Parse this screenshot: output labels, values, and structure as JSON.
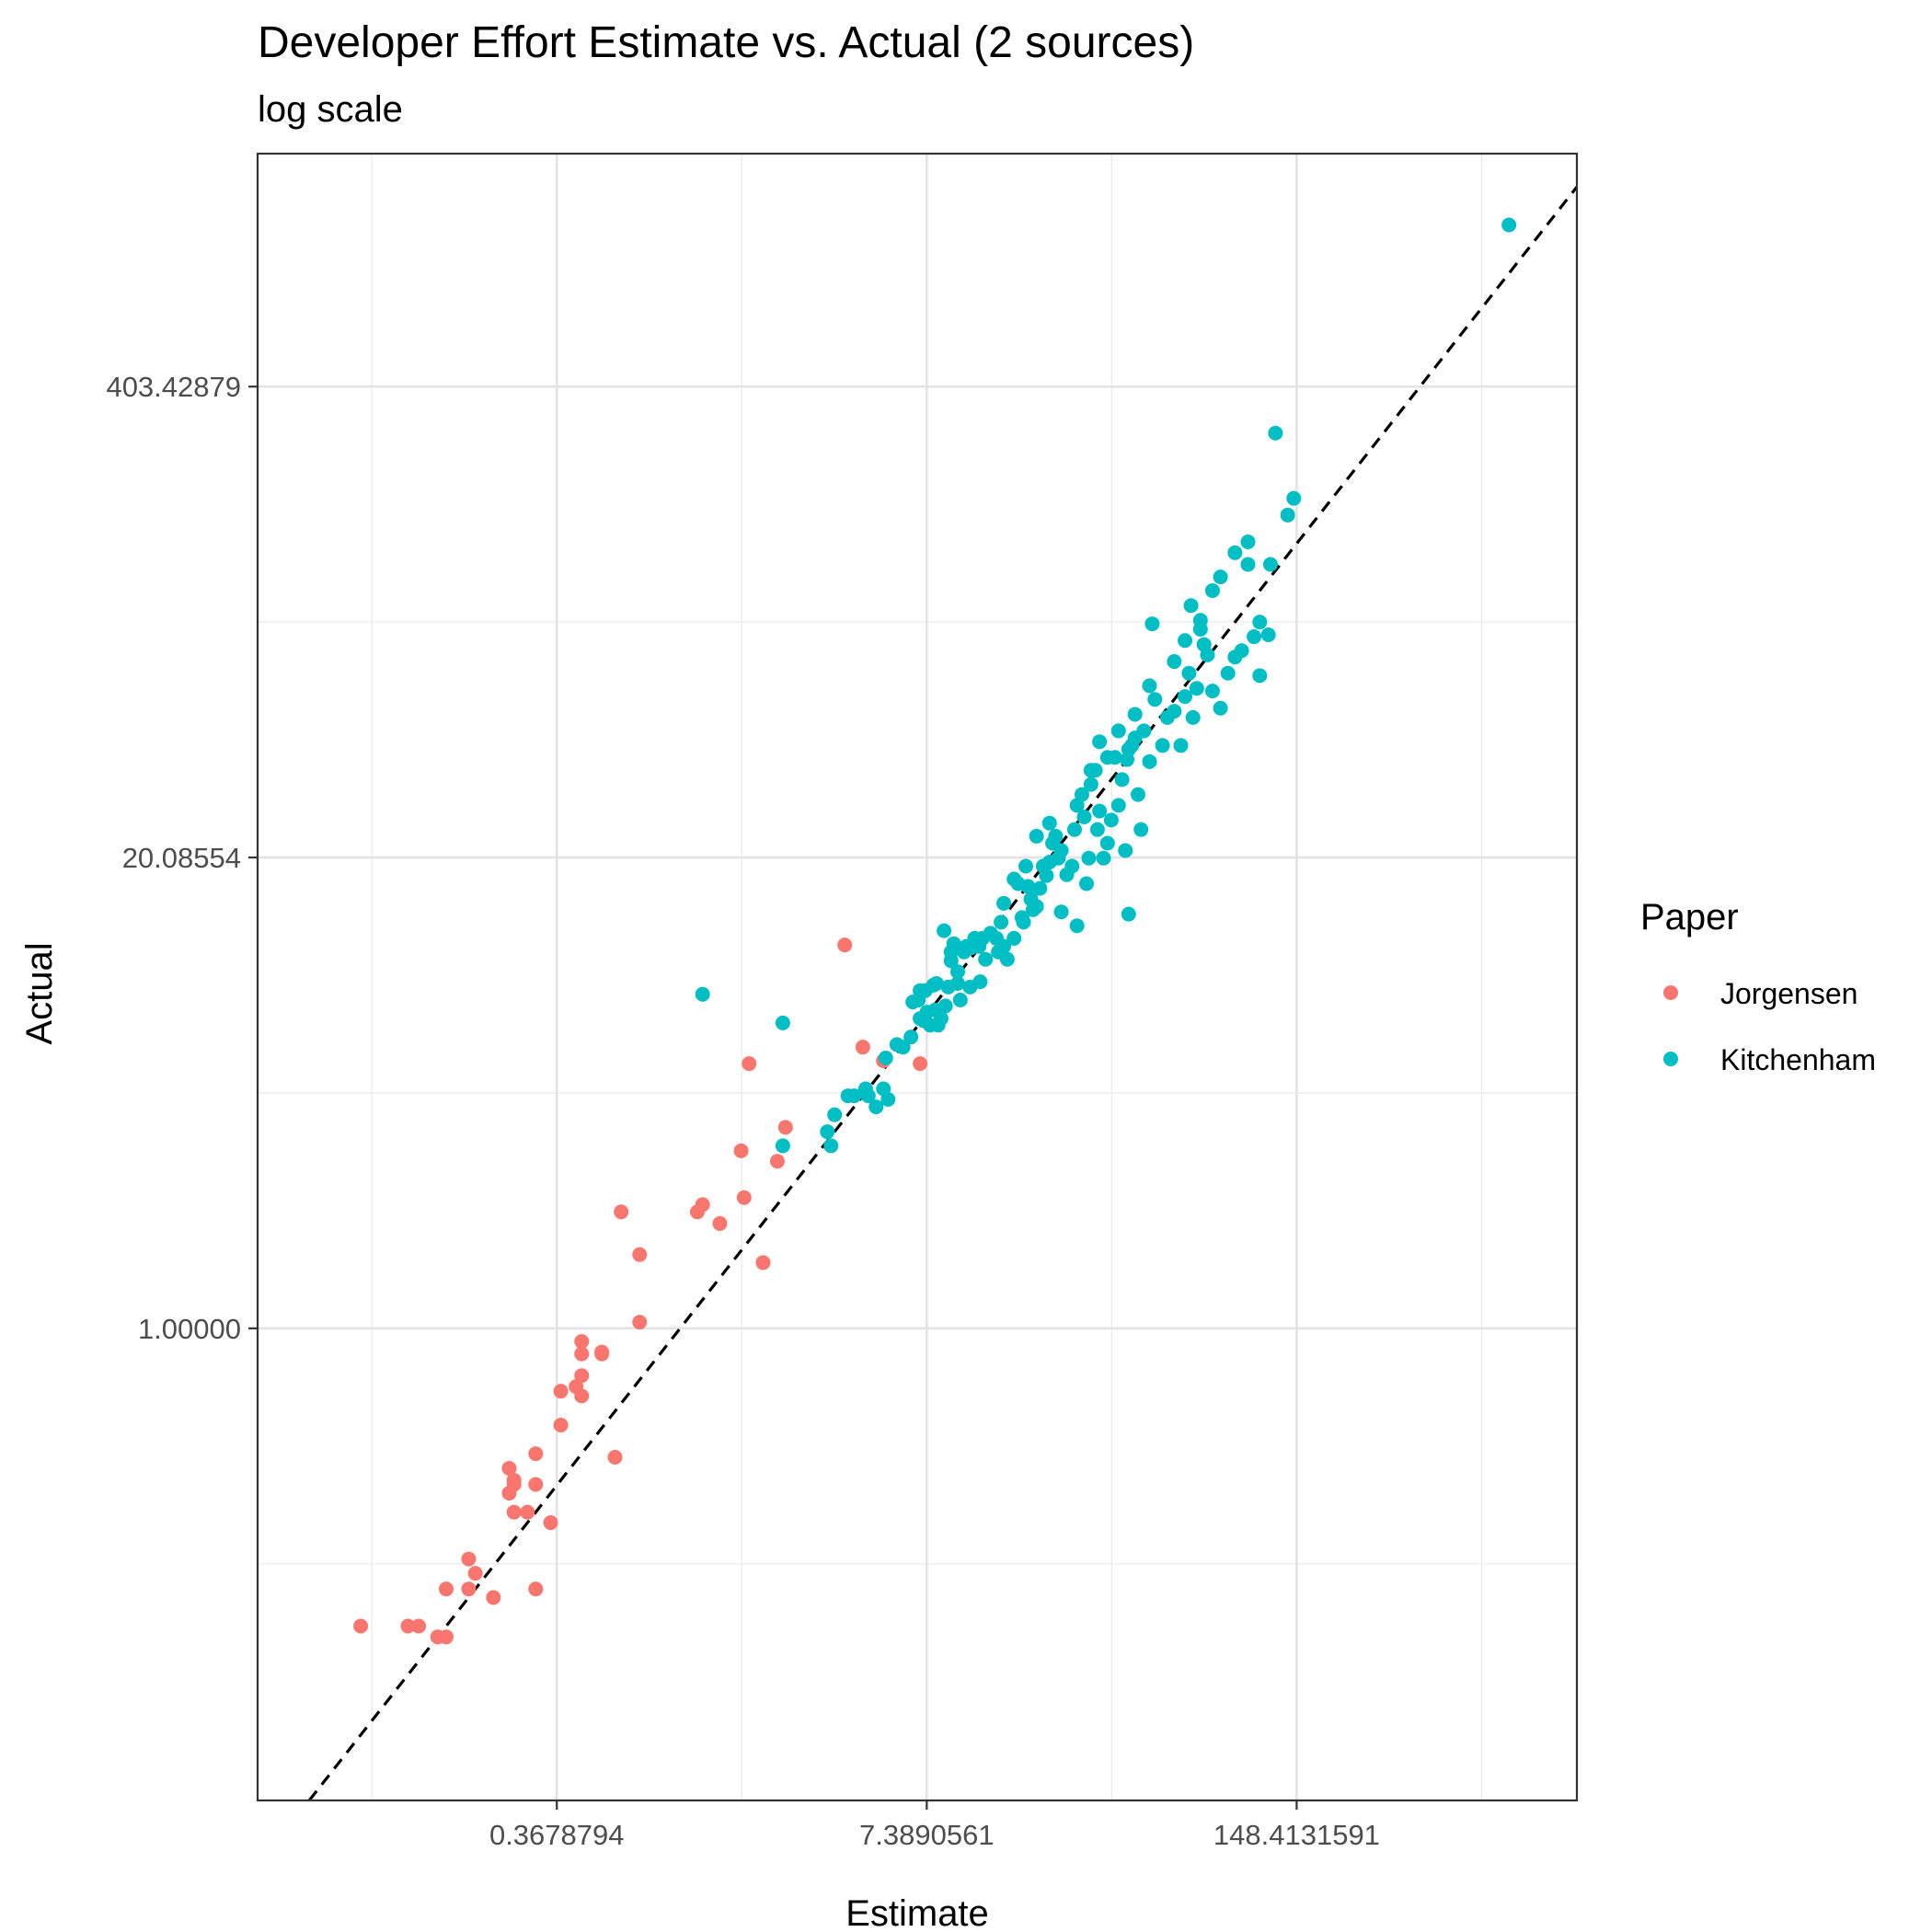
{
  "chart_data": {
    "type": "scatter",
    "title": "Developer Effort Estimate vs. Actual (2 sources)",
    "subtitle": "log scale",
    "xlabel": "Estimate",
    "ylabel": "Actual",
    "x_scale": "log",
    "y_scale": "log",
    "x_ticks": [
      {
        "value": 0.3678794,
        "label": "0.3678794"
      },
      {
        "value": 7.3890561,
        "label": "7.3890561"
      },
      {
        "value": 148.4131591,
        "label": "148.4131591"
      }
    ],
    "y_ticks": [
      {
        "value": 1.0,
        "label": "1.00000"
      },
      {
        "value": 20.08554,
        "label": "20.08554"
      },
      {
        "value": 403.42879,
        "label": "403.42879"
      }
    ],
    "xlim": [
      0.0325,
      1440
    ],
    "ylim": [
      0.0494,
      1780
    ],
    "grid": true,
    "legend": {
      "title": "Paper",
      "position": "right"
    },
    "reference_line": {
      "slope": 1,
      "intercept": 0,
      "style": "dashed",
      "color": "#000000"
    },
    "series": [
      {
        "name": "Jorgensen",
        "color": "#F8766D",
        "points": [
          [
            0.075,
            0.15
          ],
          [
            0.11,
            0.15
          ],
          [
            0.12,
            0.15
          ],
          [
            0.14,
            0.14
          ],
          [
            0.15,
            0.14
          ],
          [
            0.15,
            0.19
          ],
          [
            0.18,
            0.23
          ],
          [
            0.18,
            0.19
          ],
          [
            0.19,
            0.21
          ],
          [
            0.22,
            0.18
          ],
          [
            0.25,
            0.35
          ],
          [
            0.25,
            0.41
          ],
          [
            0.26,
            0.31
          ],
          [
            0.26,
            0.37
          ],
          [
            0.26,
            0.38
          ],
          [
            0.29,
            0.31
          ],
          [
            0.31,
            0.45
          ],
          [
            0.31,
            0.37
          ],
          [
            0.31,
            0.19
          ],
          [
            0.35,
            0.29
          ],
          [
            0.38,
            0.54
          ],
          [
            0.38,
            0.67
          ],
          [
            0.43,
            0.69
          ],
          [
            0.45,
            0.65
          ],
          [
            0.45,
            0.74
          ],
          [
            0.45,
            0.85
          ],
          [
            0.45,
            0.92
          ],
          [
            0.53,
            0.85
          ],
          [
            0.53,
            0.86
          ],
          [
            0.59,
            0.44
          ],
          [
            0.62,
            2.1
          ],
          [
            0.72,
            1.6
          ],
          [
            0.72,
            1.04
          ],
          [
            1.15,
            2.1
          ],
          [
            1.2,
            2.2
          ],
          [
            1.38,
            1.95
          ],
          [
            1.64,
            3.1
          ],
          [
            1.68,
            2.3
          ],
          [
            1.75,
            5.4
          ],
          [
            1.96,
            1.52
          ],
          [
            2.2,
            2.9
          ],
          [
            2.35,
            3.6
          ],
          [
            3.8,
            11.5
          ],
          [
            4.4,
            6.0
          ],
          [
            7.0,
            5.4
          ],
          [
            5.2,
            5.5
          ]
        ]
      },
      {
        "name": "Kitchenham",
        "color": "#00BFC4",
        "points": [
          [
            1.2,
            8.4
          ],
          [
            2.3,
            7.0
          ],
          [
            2.3,
            3.2
          ],
          [
            3.4,
            3.2
          ],
          [
            3.5,
            3.9
          ],
          [
            3.9,
            4.4
          ],
          [
            4.1,
            4.4
          ],
          [
            4.5,
            4.6
          ],
          [
            4.6,
            4.4
          ],
          [
            4.9,
            4.1
          ],
          [
            5.2,
            4.6
          ],
          [
            5.3,
            5.6
          ],
          [
            5.4,
            4.3
          ],
          [
            5.8,
            6.1
          ],
          [
            6.1,
            6.0
          ],
          [
            6.6,
            8.0
          ],
          [
            6.9,
            8.1
          ],
          [
            7.0,
            7.2
          ],
          [
            7.2,
            7.1
          ],
          [
            7.3,
            8.6
          ],
          [
            7.4,
            7.5
          ],
          [
            7.6,
            6.9
          ],
          [
            7.8,
            8.9
          ],
          [
            7.9,
            7.6
          ],
          [
            8.1,
            6.9
          ],
          [
            8.3,
            7.2
          ],
          [
            8.5,
            12.6
          ],
          [
            8.6,
            7.8
          ],
          [
            8.8,
            8.8
          ],
          [
            9.0,
            10.4
          ],
          [
            9.2,
            11.6
          ],
          [
            9.5,
            9.0
          ],
          [
            9.5,
            9.7
          ],
          [
            9.7,
            8.1
          ],
          [
            10.0,
            11.0
          ],
          [
            10.2,
            11.4
          ],
          [
            10.6,
            11.3
          ],
          [
            10.9,
            12.0
          ],
          [
            11.3,
            11.4
          ],
          [
            11.6,
            12.0
          ],
          [
            11.9,
            10.5
          ],
          [
            12.4,
            12.4
          ],
          [
            13.0,
            12.0
          ],
          [
            13.2,
            11.0
          ],
          [
            13.5,
            13.3
          ],
          [
            13.8,
            11.4
          ],
          [
            14.2,
            10.5
          ],
          [
            15.0,
            12.0
          ],
          [
            15.0,
            17.5
          ],
          [
            16.0,
            13.7
          ],
          [
            16.2,
            13.3
          ],
          [
            16.8,
            16.7
          ],
          [
            17.2,
            15.4
          ],
          [
            17.5,
            14.4
          ],
          [
            18.0,
            14.7
          ],
          [
            18.5,
            16.5
          ],
          [
            19.0,
            19.0
          ],
          [
            19.5,
            17.9
          ],
          [
            20.0,
            19.5
          ],
          [
            20.5,
            22.0
          ],
          [
            21.0,
            23.0
          ],
          [
            21.5,
            20.0
          ],
          [
            22.0,
            21.0
          ],
          [
            23.0,
            18.0
          ],
          [
            24.0,
            19.0
          ],
          [
            24.5,
            24.0
          ],
          [
            25.0,
            28.0
          ],
          [
            26.0,
            30.0
          ],
          [
            26.5,
            26.0
          ],
          [
            27.0,
            17.0
          ],
          [
            27.5,
            20.0
          ],
          [
            28.0,
            32.0
          ],
          [
            29.0,
            35.0
          ],
          [
            29.5,
            24.0
          ],
          [
            30.0,
            27.0
          ],
          [
            31.0,
            20.0
          ],
          [
            32.0,
            22.0
          ],
          [
            33.0,
            25.5
          ],
          [
            34.0,
            38.0
          ],
          [
            35.0,
            28.0
          ],
          [
            36.0,
            33.0
          ],
          [
            37.0,
            21.0
          ],
          [
            37.5,
            37.5
          ],
          [
            38.0,
            14.0
          ],
          [
            39.0,
            41.0
          ],
          [
            40.0,
            43.0
          ],
          [
            41.0,
            30.0
          ],
          [
            42.0,
            24.0
          ],
          [
            43.0,
            45.0
          ],
          [
            45.0,
            37.0
          ],
          [
            47.0,
            55.0
          ],
          [
            50.0,
            41.0
          ],
          [
            52.0,
            49.0
          ],
          [
            55.0,
            51.0
          ],
          [
            58.0,
            41.0
          ],
          [
            60.0,
            56.0
          ],
          [
            62.0,
            65.0
          ],
          [
            64.0,
            49.0
          ],
          [
            66.0,
            59.0
          ],
          [
            68.0,
            86.0
          ],
          [
            70.0,
            78.0
          ],
          [
            72.0,
            73.0
          ],
          [
            75.0,
            58.0
          ],
          [
            80.0,
            52.0
          ],
          [
            85.0,
            65.0
          ],
          [
            90.0,
            72.0
          ],
          [
            95.0,
            75.0
          ],
          [
            100.0,
            130.0
          ],
          [
            105.0,
            82.0
          ],
          [
            110.0,
            64.0
          ],
          [
            118.0,
            83.0
          ],
          [
            125.0,
            300.0
          ],
          [
            138.0,
            178.0
          ],
          [
            145.0,
            198.0
          ],
          [
            830.0,
            1130.0
          ],
          [
            3.3,
            3.5
          ],
          [
            6.5,
            6.4
          ],
          [
            7.0,
            8.6
          ],
          [
            8.0,
            9.0
          ],
          [
            9.0,
            11.0
          ],
          [
            10.5,
            8.8
          ],
          [
            11.4,
            9.1
          ],
          [
            13.8,
            15.0
          ],
          [
            15.5,
            17.0
          ],
          [
            16.5,
            19.0
          ],
          [
            18.0,
            23.0
          ],
          [
            20.0,
            25.0
          ],
          [
            22.0,
            14.2
          ],
          [
            25.0,
            13.0
          ],
          [
            28.0,
            35.0
          ],
          [
            30.0,
            42.0
          ],
          [
            32.0,
            38.0
          ],
          [
            35.0,
            45.0
          ],
          [
            38.0,
            40.0
          ],
          [
            40.0,
            50.0
          ],
          [
            45.0,
            60.0
          ],
          [
            46.0,
            89.0
          ],
          [
            55.0,
            70.0
          ],
          [
            60.0,
            80.0
          ],
          [
            63.0,
            100.0
          ],
          [
            68.0,
            91.0
          ],
          [
            75.0,
            110.0
          ],
          [
            80.0,
            120.0
          ],
          [
            90.0,
            140.0
          ],
          [
            100.0,
            150.0
          ],
          [
            110.0,
            90.0
          ],
          [
            120.0,
            130.0
          ]
        ]
      }
    ]
  }
}
